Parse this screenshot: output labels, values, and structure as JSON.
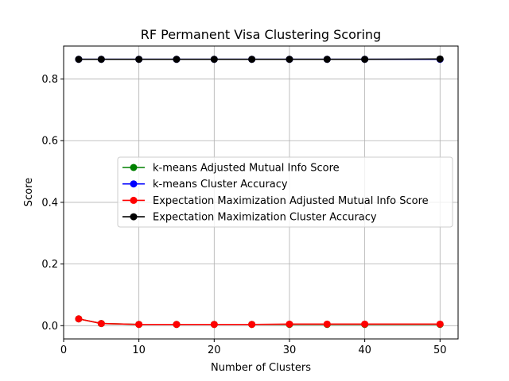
{
  "chart_data": {
    "type": "line",
    "title": "RF Permanent Visa Clustering Scoring",
    "xlabel": "Number of Clusters",
    "ylabel": "Score",
    "xlim": [
      0,
      52.4
    ],
    "ylim": [
      -0.043,
      0.907
    ],
    "xticks": [
      0,
      10,
      20,
      30,
      40,
      50
    ],
    "yticks": [
      0.0,
      0.2,
      0.4,
      0.6,
      0.8
    ],
    "ytick_labels": [
      "0.0",
      "0.2",
      "0.4",
      "0.6",
      "0.8"
    ],
    "grid": true,
    "legend_position": "center-right",
    "x": [
      2,
      5,
      10,
      15,
      20,
      25,
      30,
      35,
      40,
      50
    ],
    "series": [
      {
        "name": "k-means Adjusted Mutual Info Score",
        "color": "#008000",
        "values": [
          0.022,
          0.007,
          0.004,
          0.004,
          0.004,
          0.004,
          0.004,
          0.004,
          0.004,
          0.004
        ]
      },
      {
        "name": "k-means Cluster Accuracy",
        "color": "#0000ff",
        "values": [
          0.864,
          0.864,
          0.864,
          0.864,
          0.864,
          0.864,
          0.864,
          0.864,
          0.864,
          0.864
        ]
      },
      {
        "name": "Expectation Maximization Adjusted Mutual Info Score",
        "color": "#ff0000",
        "values": [
          0.022,
          0.007,
          0.004,
          0.004,
          0.004,
          0.004,
          0.005,
          0.005,
          0.005,
          0.005
        ]
      },
      {
        "name": "Expectation Maximization Cluster Accuracy",
        "color": "#000000",
        "values": [
          0.864,
          0.864,
          0.864,
          0.864,
          0.864,
          0.864,
          0.864,
          0.864,
          0.864,
          0.865
        ]
      }
    ]
  }
}
